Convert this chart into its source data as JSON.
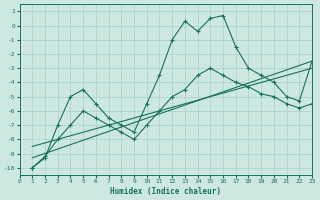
{
  "xlabel": "Humidex (Indice chaleur)",
  "xlim": [
    0,
    23
  ],
  "ylim": [
    -10.5,
    1.5
  ],
  "xticks": [
    0,
    1,
    2,
    3,
    4,
    5,
    6,
    7,
    8,
    9,
    10,
    11,
    12,
    13,
    14,
    15,
    16,
    17,
    18,
    19,
    20,
    21,
    22,
    23
  ],
  "yticks": [
    1,
    0,
    -1,
    -2,
    -3,
    -4,
    -5,
    -6,
    -7,
    -8,
    -9,
    -10
  ],
  "bg_color": "#cce8e0",
  "grid_color": "#a8d0c8",
  "line_color": "#1a7060",
  "line1_x": [
    1,
    2,
    3,
    4,
    5,
    6,
    7,
    8,
    9,
    10,
    11,
    12,
    13,
    14,
    15,
    16,
    17,
    18,
    19,
    20,
    21,
    22,
    23
  ],
  "line1_y": [
    -10.0,
    -9.3,
    -7.0,
    -5.0,
    -4.5,
    -5.5,
    -6.5,
    -7.0,
    -7.5,
    -5.5,
    -3.5,
    -1.0,
    0.3,
    -0.4,
    0.5,
    0.7,
    -1.5,
    -3.0,
    -3.5,
    -4.0,
    -5.0,
    -5.3,
    -2.5
  ],
  "line2_x": [
    1,
    2,
    3,
    4,
    5,
    6,
    7,
    8,
    9,
    10,
    11,
    12,
    13,
    14,
    15,
    16,
    17,
    18,
    19,
    20,
    21,
    22,
    23
  ],
  "line2_y": [
    -10.0,
    -9.2,
    -8.0,
    -7.0,
    -6.0,
    -6.5,
    -7.0,
    -7.5,
    -8.0,
    -7.0,
    -6.0,
    -5.0,
    -4.5,
    -3.5,
    -3.0,
    -3.5,
    -4.0,
    -4.3,
    -4.8,
    -5.0,
    -5.5,
    -5.8,
    -5.5
  ],
  "line3_x": [
    1,
    23
  ],
  "line3_y": [
    -9.3,
    -2.5
  ],
  "line4_x": [
    1,
    23
  ],
  "line4_y": [
    -8.5,
    -3.0
  ],
  "marker": "+",
  "markersize": 3,
  "linewidth": 0.8
}
